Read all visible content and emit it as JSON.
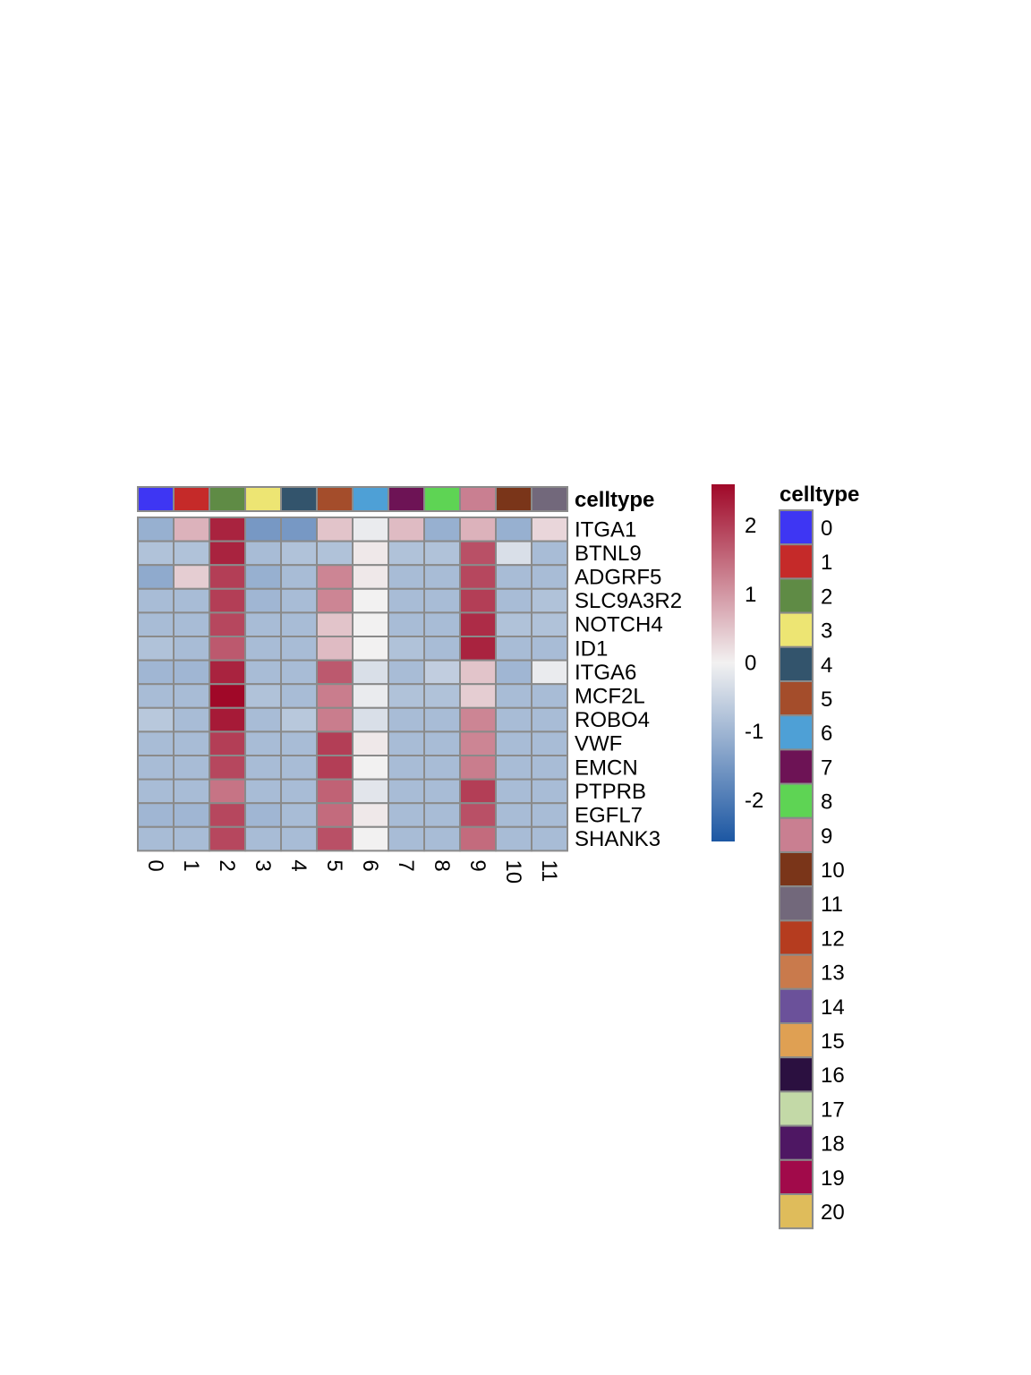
{
  "chart_data": {
    "type": "heatmap",
    "annotation_title": "celltype",
    "legend_title": "celltype",
    "columns": [
      "0",
      "1",
      "2",
      "3",
      "4",
      "5",
      "6",
      "7",
      "8",
      "9",
      "10",
      "11"
    ],
    "rows": [
      "ITGA1",
      "BTNL9",
      "ADGRF5",
      "SLC9A3R2",
      "NOTCH4",
      "ID1",
      "ITGA6",
      "MCF2L",
      "ROBO4",
      "VWF",
      "EMCN",
      "PTPRB",
      "EGFL7",
      "SHANK3"
    ],
    "values": [
      [
        -1.1,
        0.7,
        2.3,
        -1.5,
        -1.5,
        0.5,
        -0.1,
        0.6,
        -1.1,
        0.7,
        -1.1,
        0.3
      ],
      [
        -0.8,
        -0.8,
        2.3,
        -0.9,
        -0.8,
        -0.8,
        0.1,
        -0.8,
        -0.8,
        1.8,
        -0.3,
        -0.9
      ],
      [
        -1.2,
        0.4,
        2.0,
        -1.1,
        -0.9,
        1.2,
        0.1,
        -0.9,
        -0.9,
        1.9,
        -0.9,
        -0.9
      ],
      [
        -0.9,
        -0.9,
        2.0,
        -1.0,
        -0.9,
        1.2,
        0.0,
        -0.9,
        -0.9,
        2.0,
        -0.9,
        -0.8
      ],
      [
        -0.9,
        -0.9,
        1.9,
        -0.9,
        -0.9,
        0.5,
        0.0,
        -0.9,
        -0.9,
        2.2,
        -0.8,
        -0.8
      ],
      [
        -0.8,
        -0.9,
        1.7,
        -0.9,
        -0.9,
        0.6,
        0.0,
        -0.8,
        -0.9,
        2.3,
        -0.9,
        -0.9
      ],
      [
        -1.0,
        -1.0,
        2.3,
        -0.9,
        -0.9,
        1.7,
        -0.3,
        -0.9,
        -0.6,
        0.5,
        -1.0,
        -0.1
      ],
      [
        -0.9,
        -0.9,
        2.6,
        -0.8,
        -0.9,
        1.3,
        -0.1,
        -0.8,
        -0.8,
        0.4,
        -0.9,
        -0.9
      ],
      [
        -0.7,
        -0.9,
        2.4,
        -0.9,
        -0.7,
        1.3,
        -0.3,
        -0.9,
        -0.9,
        1.2,
        -0.9,
        -0.9
      ],
      [
        -0.9,
        -0.9,
        2.0,
        -0.9,
        -0.9,
        2.0,
        0.1,
        -0.9,
        -0.9,
        1.2,
        -0.9,
        -0.9
      ],
      [
        -0.9,
        -0.9,
        1.9,
        -0.9,
        -0.9,
        2.0,
        0.0,
        -0.9,
        -0.9,
        1.3,
        -0.9,
        -0.9
      ],
      [
        -0.9,
        -0.9,
        1.4,
        -0.9,
        -0.9,
        1.6,
        -0.2,
        -0.9,
        -0.9,
        2.0,
        -0.9,
        -0.9
      ],
      [
        -1.0,
        -1.0,
        1.9,
        -1.0,
        -0.9,
        1.5,
        0.1,
        -0.9,
        -0.9,
        1.8,
        -0.9,
        -0.9
      ],
      [
        -0.9,
        -0.9,
        1.9,
        -0.9,
        -0.9,
        1.8,
        0.0,
        -0.9,
        -0.9,
        1.5,
        -0.9,
        -0.9
      ]
    ],
    "color_scale": {
      "min": -2.6,
      "max": 2.6,
      "low": "#1c57a3",
      "mid": "#f2f1f1",
      "high": "#a00828",
      "ticks": [
        2,
        1,
        0,
        -1,
        -2
      ],
      "tick_labels": [
        "2",
        "1",
        "0",
        "-1",
        "-2"
      ]
    },
    "celltype_colors": [
      {
        "label": "0",
        "color": "#3e36f3"
      },
      {
        "label": "1",
        "color": "#c52a29"
      },
      {
        "label": "2",
        "color": "#5f8b45"
      },
      {
        "label": "3",
        "color": "#ede573"
      },
      {
        "label": "4",
        "color": "#33546c"
      },
      {
        "label": "5",
        "color": "#a44d2b"
      },
      {
        "label": "6",
        "color": "#4ea0d6"
      },
      {
        "label": "7",
        "color": "#6d1355"
      },
      {
        "label": "8",
        "color": "#5ed454"
      },
      {
        "label": "9",
        "color": "#c97f91"
      },
      {
        "label": "10",
        "color": "#7a3519"
      },
      {
        "label": "11",
        "color": "#72687b"
      },
      {
        "label": "12",
        "color": "#b53c1f"
      },
      {
        "label": "13",
        "color": "#c97a4c"
      },
      {
        "label": "14",
        "color": "#6b519a"
      },
      {
        "label": "15",
        "color": "#dfa053"
      },
      {
        "label": "16",
        "color": "#2b1040"
      },
      {
        "label": "17",
        "color": "#c3d9a7"
      },
      {
        "label": "18",
        "color": "#4e1763"
      },
      {
        "label": "19",
        "color": "#a10a4a"
      },
      {
        "label": "20",
        "color": "#dfbc5b"
      }
    ]
  }
}
